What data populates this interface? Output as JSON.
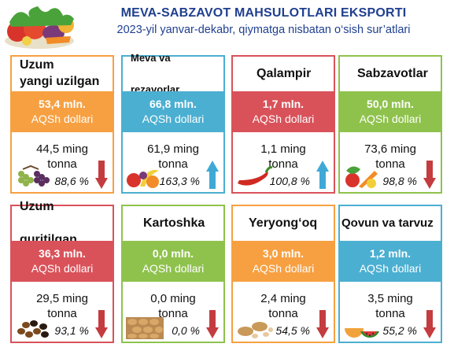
{
  "header": {
    "title": "MEVA-SABZAVOT MAHSULOTLARI EKSPORTI",
    "subtitle": "2023-yil yanvar-dekabr, qiymatga nisbatan o‘sish sur’atlari"
  },
  "colors": {
    "orange": "#f7a042",
    "blue": "#4bafd1",
    "red": "#d9525a",
    "green": "#8fc24d",
    "arrow_up": "#3fa9d6",
    "arrow_down": "#c43c3f",
    "title": "#1f3f8f"
  },
  "cards": [
    {
      "name": "Uzum yangi uzilgan",
      "name_line1": "Uzum",
      "name_line2": "yangi uzilgan",
      "value": "53,4 mln.",
      "unit": "AQSh dollari",
      "volume": "44,5 ming",
      "volume_unit": "tonna",
      "growth": "88,6 %",
      "trend": "down",
      "color": "orange",
      "icon": "grapes-icon"
    },
    {
      "name": "Meva va rezavorlar",
      "name_line1": "Meva va",
      "name_line2": "rezavorlar",
      "value": "66,8 mln.",
      "unit": "AQSh dollari",
      "volume": "61,9 ming",
      "volume_unit": "tonna",
      "growth": "163,3 %",
      "trend": "up",
      "color": "blue",
      "icon": "fruits-icon"
    },
    {
      "name": "Qalampir",
      "name_line1": "Qalampir",
      "name_line2": "",
      "value": "1,7 mln.",
      "unit": "AQSh dollari",
      "volume": "1,1 ming",
      "volume_unit": "tonna",
      "growth": "100,8 %",
      "trend": "up",
      "color": "red",
      "icon": "chili-pepper-icon"
    },
    {
      "name": "Sabzavotlar",
      "name_line1": "Sabzavotlar",
      "name_line2": "",
      "value": "50,0 mln.",
      "unit": "AQSh dollari",
      "volume": "73,6 ming",
      "volume_unit": "tonna",
      "growth": "98,8 %",
      "trend": "down",
      "color": "green",
      "icon": "vegetables-icon"
    },
    {
      "name": "Uzum quritilgan",
      "name_line1": "Uzum",
      "name_line2": "quritilgan",
      "value": "36,3 mln.",
      "unit": "AQSh dollari",
      "volume": "29,5 ming",
      "volume_unit": "tonna",
      "growth": "93,1 %",
      "trend": "down",
      "color": "red",
      "icon": "raisins-icon"
    },
    {
      "name": "Kartoshka",
      "name_line1": "Kartoshka",
      "name_line2": "",
      "value": "0,0 mln.",
      "unit": "AQSh dollari",
      "volume": "0,0 ming",
      "volume_unit": "tonna",
      "growth": "0,0 %",
      "trend": "down",
      "color": "green",
      "icon": "potatoes-icon"
    },
    {
      "name": "Yeryong‘oq",
      "name_line1": "Yeryong‘oq",
      "name_line2": "",
      "value": "3,0 mln.",
      "unit": "AQSh dollari",
      "volume": "2,4 ming",
      "volume_unit": "tonna",
      "growth": "54,5 %",
      "trend": "down",
      "color": "orange",
      "icon": "peanuts-icon"
    },
    {
      "name": "Qovun va tarvuz",
      "name_line1": "Qovun va tarvuz",
      "name_line2": "",
      "value": "1,2 mln.",
      "unit": "AQSh dollari",
      "volume": "3,5 ming",
      "volume_unit": "tonna",
      "growth": "55,2 %",
      "trend": "down",
      "color": "blue",
      "icon": "melon-watermelon-icon"
    }
  ]
}
